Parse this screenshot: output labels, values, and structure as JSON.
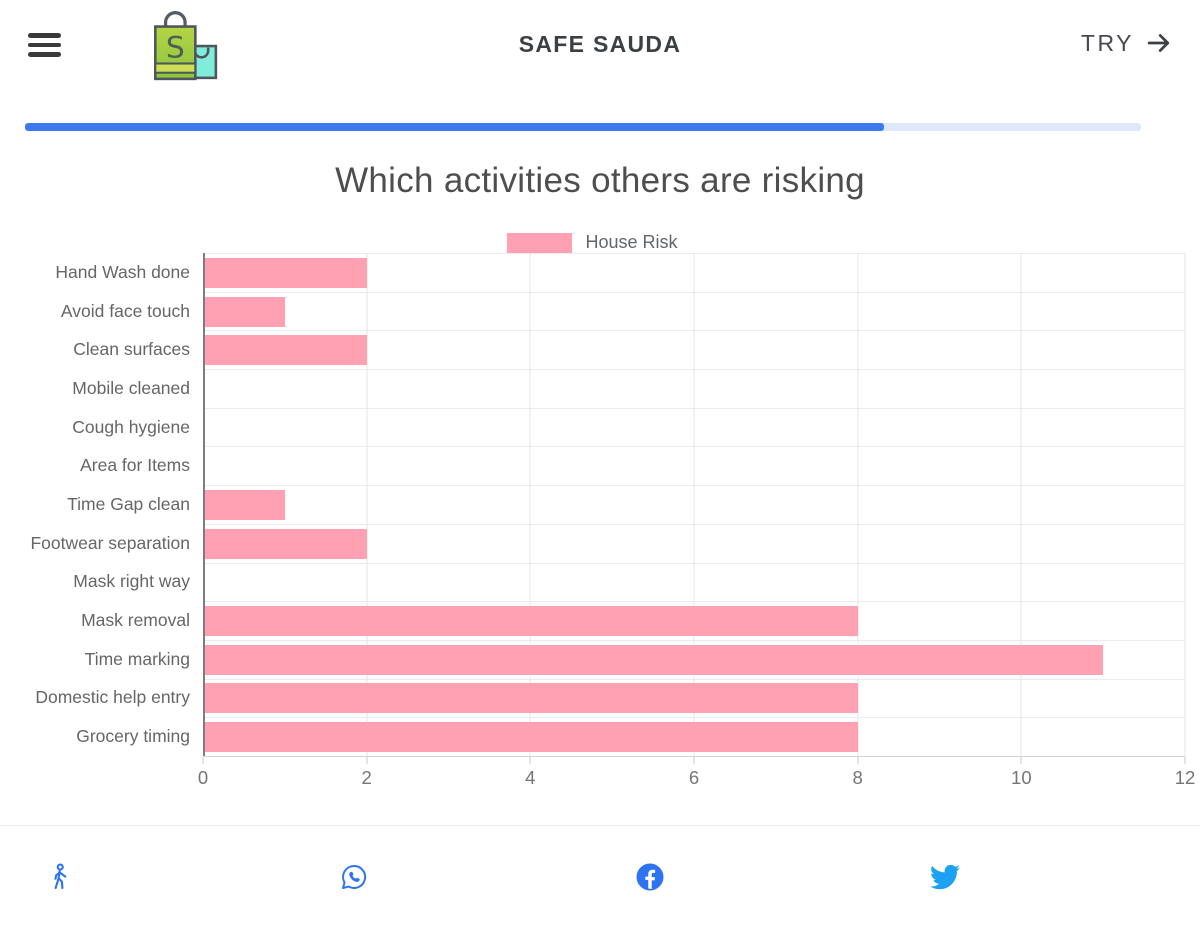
{
  "header": {
    "brand": "SAFE SAUDA",
    "try_label": "TRY"
  },
  "progress": {
    "percent": 77
  },
  "page_title": "Which activities others are risking",
  "chart_data": {
    "type": "bar",
    "orientation": "horizontal",
    "title": "Which activities others are risking",
    "legend_position": "top",
    "legend": [
      {
        "label": "House Risk",
        "color": "#ffa1b2"
      }
    ],
    "categories": [
      "Hand Wash done",
      "Avoid face touch",
      "Clean surfaces",
      "Mobile cleaned",
      "Cough hygiene",
      "Area for Items",
      "Time Gap clean",
      "Footwear separation",
      "Mask right way",
      "Mask removal",
      "Time marking",
      "Domestic help entry",
      "Grocery timing"
    ],
    "series": [
      {
        "name": "House Risk",
        "values": [
          2,
          1,
          2,
          0,
          0,
          0,
          1,
          2,
          0,
          8,
          11,
          8,
          8
        ]
      }
    ],
    "xlim": [
      0,
      12
    ],
    "xticks": [
      0,
      2,
      4,
      6,
      8,
      10,
      12
    ],
    "grid": true
  },
  "footer": {
    "icons": [
      "walking-person",
      "whatsapp",
      "facebook",
      "twitter"
    ]
  },
  "colors": {
    "bar": "#ffa1b2",
    "progress_fill": "#3d78f0",
    "progress_track": "#dde8fb",
    "icon_blue": "#2e73f0",
    "twitter_blue": "#1da1f2",
    "grid_line": "#e4e4e4",
    "axis_line": "#7d7d7d"
  }
}
